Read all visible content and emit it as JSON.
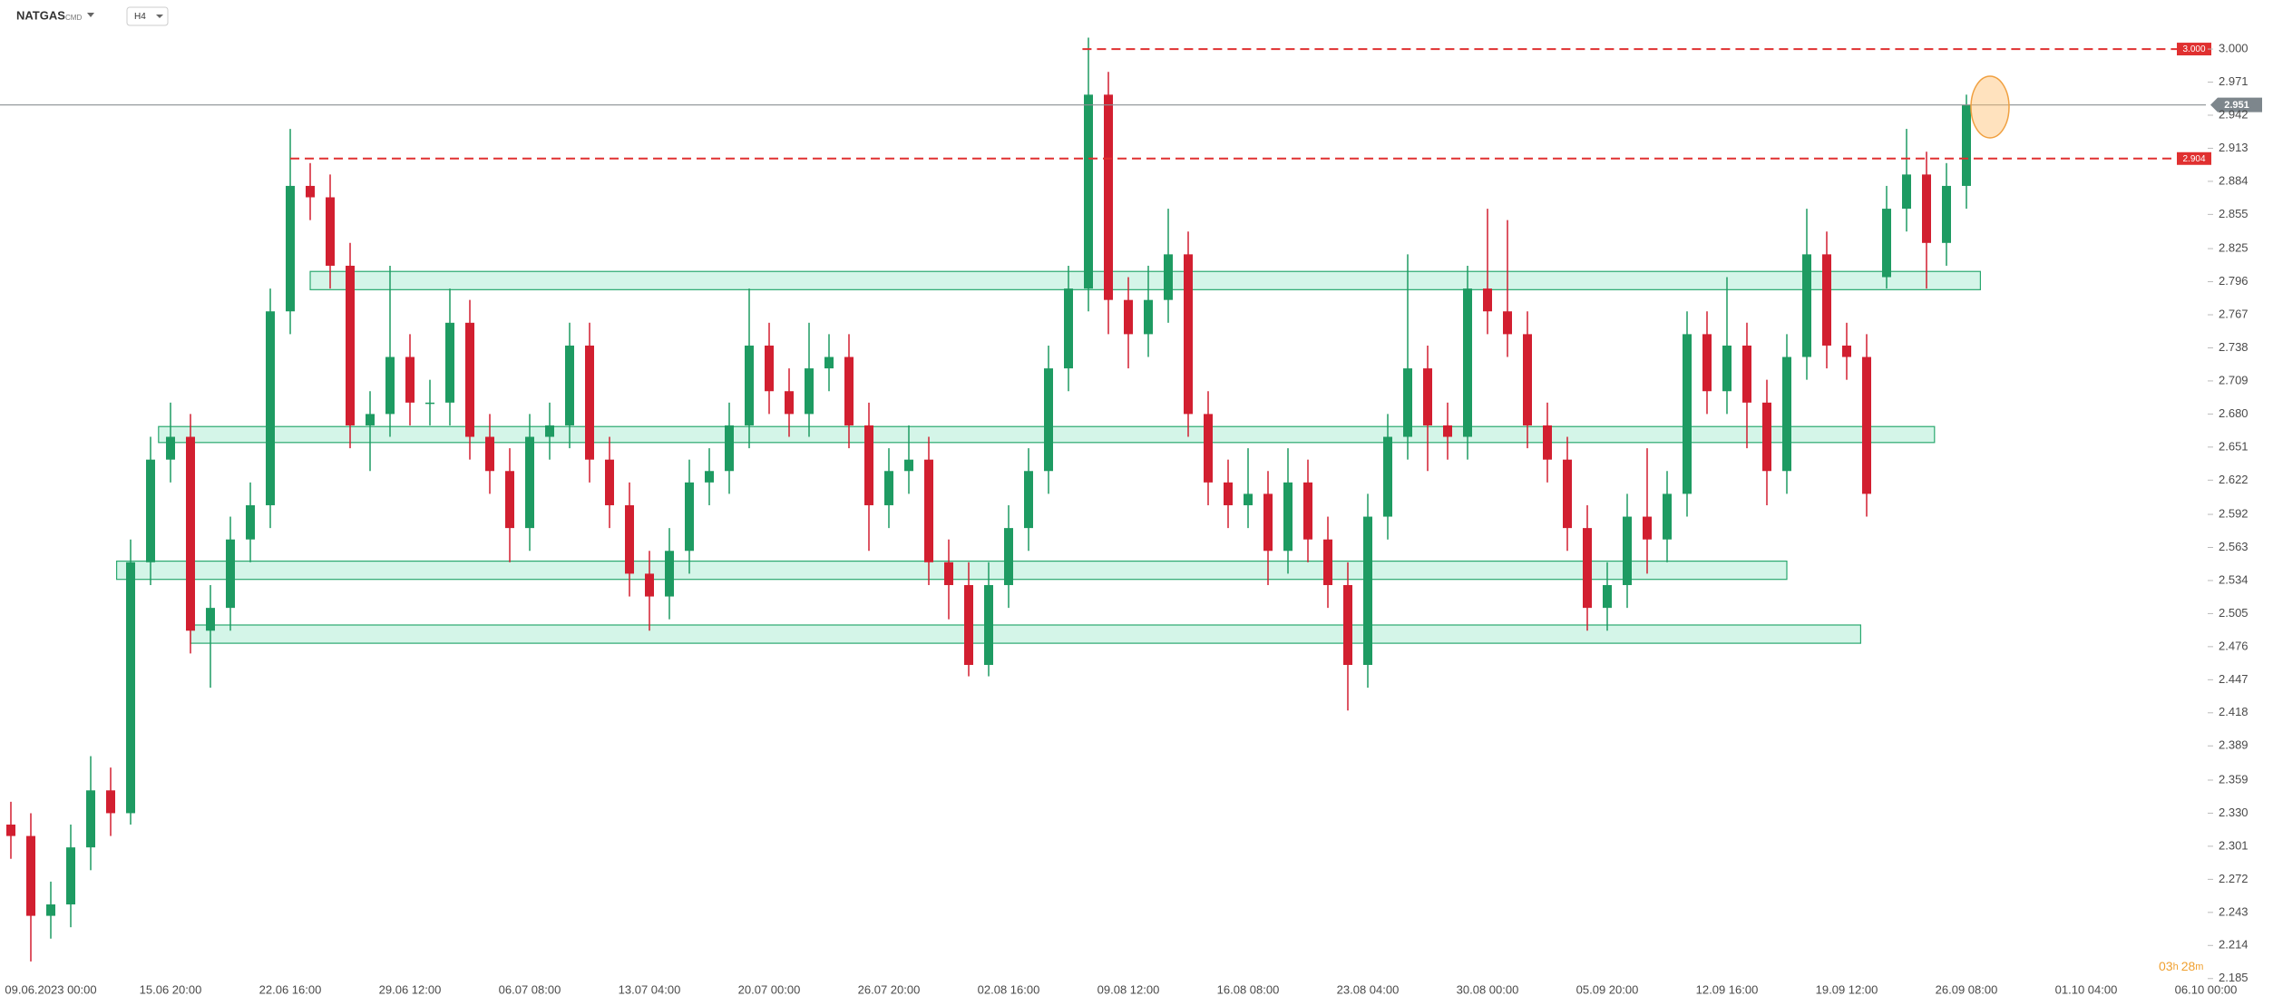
{
  "chart_data": {
    "type": "candlestick",
    "symbol": "NATGAS",
    "symbol_tag": "CMD",
    "interval": "H4",
    "categories": [
      null,
      null,
      "09.06.2023 00:00",
      null,
      null,
      null,
      null,
      null,
      "15.06 20:00",
      null,
      null,
      null,
      null,
      null,
      "22.06 16:00",
      null,
      null,
      null,
      null,
      null,
      "29.06 12:00",
      null,
      null,
      null,
      null,
      null,
      "06.07 08:00",
      null,
      null,
      null,
      null,
      null,
      "13.07 04:00",
      null,
      null,
      null,
      null,
      null,
      "20.07 00:00",
      null,
      null,
      null,
      null,
      null,
      "26.07 20:00",
      null,
      null,
      null,
      null,
      null,
      "02.08 16:00",
      null,
      null,
      null,
      null,
      null,
      "09.08 12:00",
      null,
      null,
      null,
      null,
      null,
      "16.08 08:00",
      null,
      null,
      null,
      null,
      null,
      "23.08 04:00",
      null,
      null,
      null,
      null,
      null,
      "30.08 00:00",
      null,
      null,
      null,
      null,
      null,
      "05.09 20:00",
      null,
      null,
      null,
      null,
      null,
      "12.09 16:00",
      null,
      null,
      null,
      null,
      null,
      "19.09 12:00",
      null,
      null,
      null,
      null,
      null,
      "26.09 08:00",
      null,
      null,
      null,
      null,
      null,
      "01.10 04:00",
      null,
      null,
      null,
      null,
      null,
      "06.10 00:00"
    ],
    "open": [
      2.32,
      2.31,
      2.24,
      2.25,
      2.3,
      2.35,
      2.33,
      2.55,
      2.64,
      2.66,
      2.49,
      2.51,
      2.57,
      2.6,
      2.77,
      2.88,
      2.87,
      2.81,
      2.67,
      2.68,
      2.73,
      2.69,
      2.69,
      2.76,
      2.66,
      2.63,
      2.58,
      2.66,
      2.67,
      2.74,
      2.64,
      2.6,
      2.54,
      2.52,
      2.56,
      2.62,
      2.63,
      2.67,
      2.74,
      2.7,
      2.68,
      2.72,
      2.73,
      2.67,
      2.6,
      2.63,
      2.64,
      2.55,
      2.53,
      2.46,
      2.53,
      2.58,
      2.63,
      2.72,
      2.79,
      2.96,
      2.78,
      2.75,
      2.78,
      2.82,
      2.68,
      2.62,
      2.6,
      2.61,
      2.56,
      2.62,
      2.57,
      2.53,
      2.46,
      2.59,
      2.66,
      2.72,
      2.67,
      2.66,
      2.79,
      2.77,
      2.75,
      2.67,
      2.64,
      2.58,
      2.51,
      2.53,
      2.59,
      2.57,
      2.61,
      2.75,
      2.7,
      2.74,
      2.69,
      2.63,
      2.73,
      2.82,
      2.74,
      2.73,
      2.8,
      2.86,
      2.89,
      2.83,
      2.88,
      null,
      null,
      null,
      null,
      null,
      null,
      null,
      null,
      null,
      null,
      null,
      null
    ],
    "high": [
      2.34,
      2.33,
      2.27,
      2.32,
      2.38,
      2.37,
      2.57,
      2.66,
      2.69,
      2.68,
      2.53,
      2.59,
      2.62,
      2.79,
      2.93,
      2.9,
      2.89,
      2.83,
      2.7,
      2.81,
      2.75,
      2.71,
      2.79,
      2.78,
      2.68,
      2.65,
      2.68,
      2.69,
      2.76,
      2.76,
      2.66,
      2.62,
      2.56,
      2.58,
      2.64,
      2.65,
      2.69,
      2.79,
      2.76,
      2.72,
      2.76,
      2.75,
      2.75,
      2.69,
      2.65,
      2.67,
      2.66,
      2.57,
      2.55,
      2.55,
      2.6,
      2.65,
      2.74,
      2.81,
      3.01,
      2.98,
      2.8,
      2.81,
      2.86,
      2.84,
      2.7,
      2.64,
      2.65,
      2.63,
      2.65,
      2.64,
      2.59,
      2.55,
      2.61,
      2.68,
      2.82,
      2.74,
      2.69,
      2.81,
      2.86,
      2.85,
      2.77,
      2.69,
      2.66,
      2.6,
      2.55,
      2.61,
      2.65,
      2.63,
      2.77,
      2.77,
      2.8,
      2.76,
      2.71,
      2.75,
      2.86,
      2.84,
      2.76,
      2.75,
      2.88,
      2.93,
      2.91,
      2.9,
      2.96,
      null,
      null,
      null,
      null,
      null,
      null,
      null,
      null,
      null,
      null,
      null,
      null
    ],
    "low": [
      2.29,
      2.2,
      2.22,
      2.23,
      2.28,
      2.31,
      2.32,
      2.53,
      2.62,
      2.47,
      2.44,
      2.49,
      2.55,
      2.58,
      2.75,
      2.85,
      2.79,
      2.65,
      2.63,
      2.66,
      2.67,
      2.67,
      2.67,
      2.64,
      2.61,
      2.55,
      2.56,
      2.64,
      2.65,
      2.62,
      2.58,
      2.52,
      2.49,
      2.5,
      2.54,
      2.6,
      2.61,
      2.65,
      2.68,
      2.66,
      2.66,
      2.7,
      2.65,
      2.56,
      2.58,
      2.61,
      2.53,
      2.5,
      2.45,
      2.45,
      2.51,
      2.56,
      2.61,
      2.7,
      2.77,
      2.75,
      2.72,
      2.73,
      2.76,
      2.66,
      2.6,
      2.58,
      2.58,
      2.53,
      2.54,
      2.55,
      2.51,
      2.42,
      2.44,
      2.57,
      2.64,
      2.63,
      2.64,
      2.64,
      2.75,
      2.73,
      2.65,
      2.62,
      2.56,
      2.49,
      2.49,
      2.51,
      2.54,
      2.55,
      2.59,
      2.68,
      2.68,
      2.65,
      2.6,
      2.61,
      2.71,
      2.72,
      2.71,
      2.59,
      2.79,
      2.84,
      2.79,
      2.81,
      2.86,
      null,
      null,
      null,
      null,
      null,
      null,
      null,
      null,
      null,
      null,
      null,
      null
    ],
    "close": [
      2.31,
      2.24,
      2.25,
      2.3,
      2.35,
      2.33,
      2.55,
      2.64,
      2.66,
      2.49,
      2.51,
      2.57,
      2.6,
      2.77,
      2.88,
      2.87,
      2.81,
      2.67,
      2.68,
      2.73,
      2.69,
      2.69,
      2.76,
      2.66,
      2.63,
      2.58,
      2.66,
      2.67,
      2.74,
      2.64,
      2.6,
      2.54,
      2.52,
      2.56,
      2.62,
      2.63,
      2.67,
      2.74,
      2.7,
      2.68,
      2.72,
      2.73,
      2.67,
      2.6,
      2.63,
      2.64,
      2.55,
      2.53,
      2.46,
      2.53,
      2.58,
      2.63,
      2.72,
      2.79,
      2.96,
      2.78,
      2.75,
      2.78,
      2.82,
      2.68,
      2.62,
      2.6,
      2.61,
      2.56,
      2.62,
      2.57,
      2.53,
      2.46,
      2.59,
      2.66,
      2.72,
      2.67,
      2.66,
      2.79,
      2.77,
      2.75,
      2.67,
      2.64,
      2.58,
      2.51,
      2.53,
      2.59,
      2.57,
      2.61,
      2.75,
      2.7,
      2.74,
      2.69,
      2.63,
      2.73,
      2.82,
      2.74,
      2.73,
      2.61,
      2.86,
      2.89,
      2.83,
      2.88,
      2.951,
      null,
      null,
      null,
      null,
      null,
      null,
      null,
      null,
      null,
      null,
      null,
      null
    ],
    "up_color": "#1e9b62",
    "down_color": "#d21f30",
    "ylim": [
      2.184,
      3.043
    ],
    "yticks": [
      {
        "value": 3.0,
        "label": "3.000"
      },
      2.971,
      2.942,
      2.913,
      2.884,
      2.855,
      2.825,
      2.796,
      2.767,
      2.738,
      2.709,
      {
        "value": 2.68,
        "label": "2.680"
      },
      2.651,
      2.622,
      2.592,
      2.563,
      2.534,
      2.505,
      2.476,
      2.447,
      2.418,
      2.389,
      2.359,
      {
        "value": 2.33,
        "label": "2.330"
      },
      2.301,
      2.272,
      2.243,
      2.214,
      2.185
    ],
    "zones": [
      {
        "low": 2.789,
        "high": 2.805,
        "from": 15.0,
        "to": 98.7
      },
      {
        "low": 2.655,
        "high": 2.669,
        "from": 7.4,
        "to": 96.4
      },
      {
        "low": 2.535,
        "high": 2.551,
        "from": 5.3,
        "to": 89.0
      },
      {
        "low": 2.479,
        "high": 2.495,
        "from": 9.0,
        "to": 92.7
      }
    ],
    "levels": [
      {
        "value": 3.0,
        "label": "3.000",
        "from": 53.7
      },
      {
        "value": 2.904,
        "label": "2.904",
        "from": 14.0
      }
    ],
    "last_price": {
      "value": 2.951,
      "label": "2.951"
    },
    "countdown": {
      "hours": "03",
      "h": "h",
      "minutes": "28",
      "m": "m"
    }
  }
}
